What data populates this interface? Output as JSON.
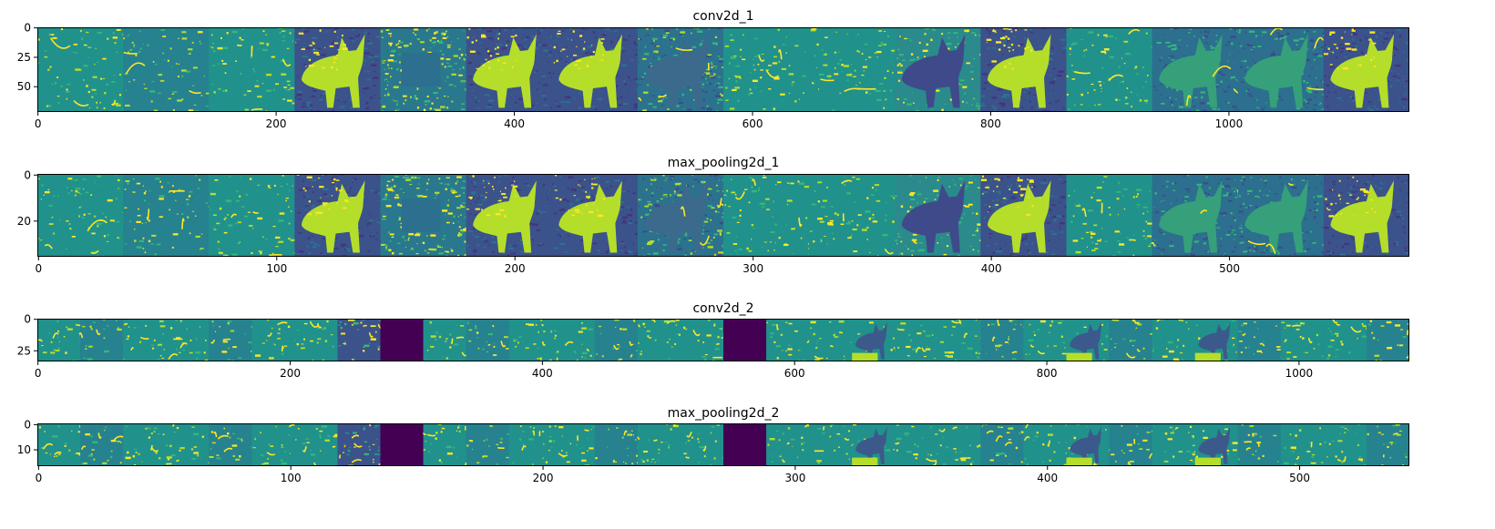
{
  "chart_data": [
    {
      "type": "heatmap",
      "title": "conv2d_1",
      "colormap": "viridis",
      "tile_count": 16,
      "tile_size": [
        72,
        72
      ],
      "xlim": [
        0,
        1152
      ],
      "ylim": [
        0,
        72
      ],
      "xticks": [
        "0",
        "200",
        "400",
        "600",
        "800",
        "1000"
      ],
      "yticks": [
        "0",
        "25",
        "50"
      ],
      "tiles": [
        "sparse",
        "sparse",
        "sparse",
        "dog",
        "noise",
        "dog",
        "dog",
        "dog-dark-noise",
        "sparse",
        "sparse",
        "dog-inverse",
        "dog",
        "sparse",
        "dog-texture",
        "dog-texture",
        "dog"
      ]
    },
    {
      "type": "heatmap",
      "title": "max_pooling2d_1",
      "colormap": "viridis",
      "tile_count": 16,
      "tile_size": [
        36,
        36
      ],
      "xlim": [
        0,
        576
      ],
      "ylim": [
        0,
        36
      ],
      "xticks": [
        "0",
        "100",
        "200",
        "300",
        "400",
        "500"
      ],
      "yticks": [
        "0",
        "20"
      ],
      "tiles": [
        "sparse",
        "sparse",
        "sparse",
        "dog",
        "noise",
        "dog",
        "dog",
        "dog-dark-noise",
        "sparse",
        "sparse",
        "dog-inverse",
        "dog",
        "sparse",
        "dog-texture",
        "dog-texture",
        "dog"
      ]
    },
    {
      "type": "heatmap",
      "title": "conv2d_2",
      "colormap": "viridis",
      "tile_count": 32,
      "tile_size": [
        34,
        34
      ],
      "xlim": [
        0,
        1088
      ],
      "ylim": [
        0,
        34
      ],
      "xticks": [
        "0",
        "200",
        "400",
        "600",
        "800",
        "1000"
      ],
      "yticks": [
        "0",
        "25"
      ],
      "tiles": [
        "sparse",
        "sparse",
        "sparse",
        "sparse",
        "sparse",
        "sparse",
        "sparse",
        "texture",
        "dead",
        "sparse",
        "sparse",
        "sparse",
        "sparse",
        "sparse",
        "sparse",
        "sparse",
        "dead",
        "sparse",
        "sparse",
        "dog-blue",
        "sparse",
        "sparse",
        "sparse",
        "sparse",
        "dog-blue",
        "sparse",
        "sparse",
        "dog-blue",
        "sparse",
        "sparse",
        "sparse",
        "sparse"
      ]
    },
    {
      "type": "heatmap",
      "title": "max_pooling2d_2",
      "colormap": "viridis",
      "tile_count": 32,
      "tile_size": [
        17,
        17
      ],
      "xlim": [
        0,
        544
      ],
      "ylim": [
        0,
        17
      ],
      "xticks": [
        "0",
        "100",
        "200",
        "300",
        "400",
        "500"
      ],
      "yticks": [
        "0",
        "10"
      ],
      "tiles": [
        "sparse",
        "sparse",
        "sparse",
        "sparse",
        "sparse",
        "sparse",
        "sparse",
        "texture",
        "dead",
        "sparse",
        "sparse",
        "sparse",
        "sparse",
        "sparse",
        "sparse",
        "sparse",
        "dead",
        "sparse",
        "sparse",
        "dog-blue",
        "sparse",
        "sparse",
        "sparse",
        "sparse",
        "dog-blue",
        "sparse",
        "sparse",
        "dog-blue",
        "sparse",
        "sparse",
        "sparse",
        "sparse"
      ]
    }
  ],
  "colors": {
    "dead": "#440154",
    "dark": "#3b528b",
    "blue": "#31688e",
    "teal": "#21918c",
    "green": "#35b779",
    "lime": "#b5de2b",
    "yellow": "#fde725"
  }
}
